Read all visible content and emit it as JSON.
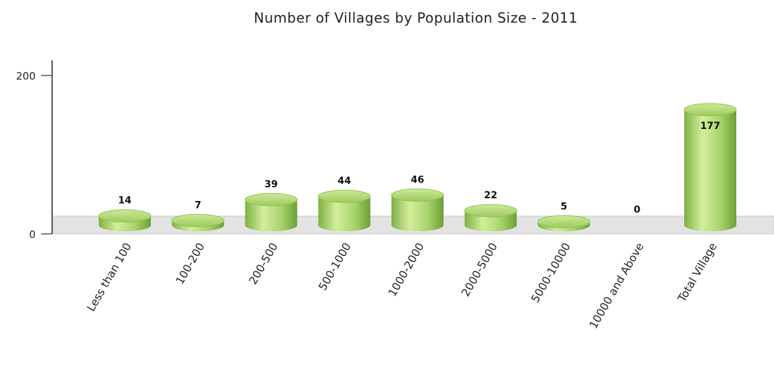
{
  "chart_data": {
    "type": "bar",
    "title": "Number of Villages by Population Size - 2011",
    "categories": [
      "Less than 100",
      "100-200",
      "200-500",
      "500-1000",
      "1000-2000",
      "2000-5000",
      "5000-10000",
      "10000 and Above",
      "Total Village"
    ],
    "values": [
      14,
      7,
      39,
      44,
      46,
      22,
      5,
      0,
      177
    ],
    "ylim": [
      0,
      200
    ],
    "yticks": [
      "0",
      "200"
    ],
    "xlabel": "",
    "ylabel": "",
    "grid": false,
    "legend": "none",
    "colors": {
      "bar_light": "#d6ef9f",
      "bar_mid": "#a9d46a",
      "bar_dark": "#6fa23a",
      "floor": "#e3e3e3"
    }
  }
}
